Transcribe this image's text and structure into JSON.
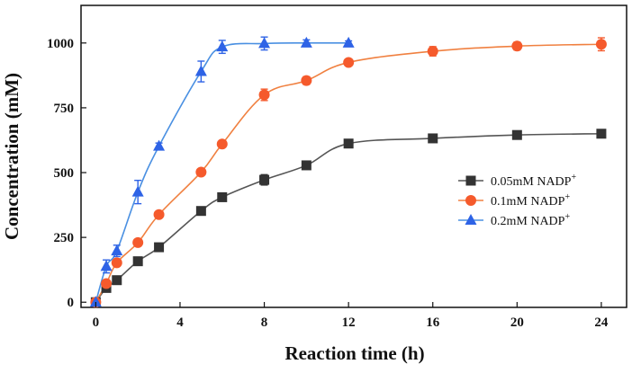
{
  "chart_data": {
    "type": "line",
    "title": "",
    "xlabel": "Reaction time (h)",
    "ylabel": "Concentration (mM)",
    "xlim": [
      -0.7,
      25.2
    ],
    "ylim": [
      -20,
      1145
    ],
    "xticks": [
      0,
      4,
      8,
      12,
      16,
      20,
      24
    ],
    "yticks": [
      0,
      250,
      500,
      750,
      1000
    ],
    "grid": false,
    "legend_position": "right",
    "series": [
      {
        "name": "0.05mM NADP+",
        "legend_main": "0.05mM NADP",
        "legend_sup": "+",
        "marker": "square",
        "color": "#333333",
        "line_color": "#555555",
        "x": [
          0,
          0.5,
          1,
          2,
          3,
          5,
          6,
          8,
          10,
          12,
          16,
          20,
          24
        ],
        "y": [
          0,
          55,
          85,
          158,
          212,
          352,
          405,
          472,
          528,
          612,
          632,
          645,
          650
        ],
        "err": [
          8,
          10,
          10,
          10,
          10,
          12,
          15,
          20,
          15,
          12,
          15,
          10,
          12
        ]
      },
      {
        "name": "0.1mM NADP+",
        "legend_main": "0.1mM NADP",
        "legend_sup": "+",
        "marker": "circle",
        "color": "#f55a2c",
        "line_color": "#f08040",
        "x": [
          0,
          0.5,
          1,
          2,
          3,
          5,
          6,
          8,
          10,
          12,
          16,
          20,
          24
        ],
        "y": [
          0,
          72,
          152,
          230,
          338,
          502,
          610,
          800,
          855,
          925,
          968,
          988,
          995
        ],
        "err": [
          8,
          12,
          10,
          12,
          12,
          10,
          12,
          22,
          15,
          12,
          18,
          15,
          25
        ]
      },
      {
        "name": "0.2mM NADP+",
        "legend_main": "0.2mM NADP",
        "legend_sup": "+",
        "marker": "triangle",
        "color": "#2e63e6",
        "line_color": "#4a90e2",
        "x": [
          0,
          0.5,
          1,
          2,
          3,
          5,
          6,
          8,
          10,
          12
        ],
        "y": [
          0,
          138,
          198,
          425,
          602,
          890,
          985,
          998,
          1000,
          1000
        ],
        "err": [
          8,
          25,
          22,
          45,
          12,
          40,
          25,
          25,
          12,
          8
        ]
      }
    ]
  }
}
